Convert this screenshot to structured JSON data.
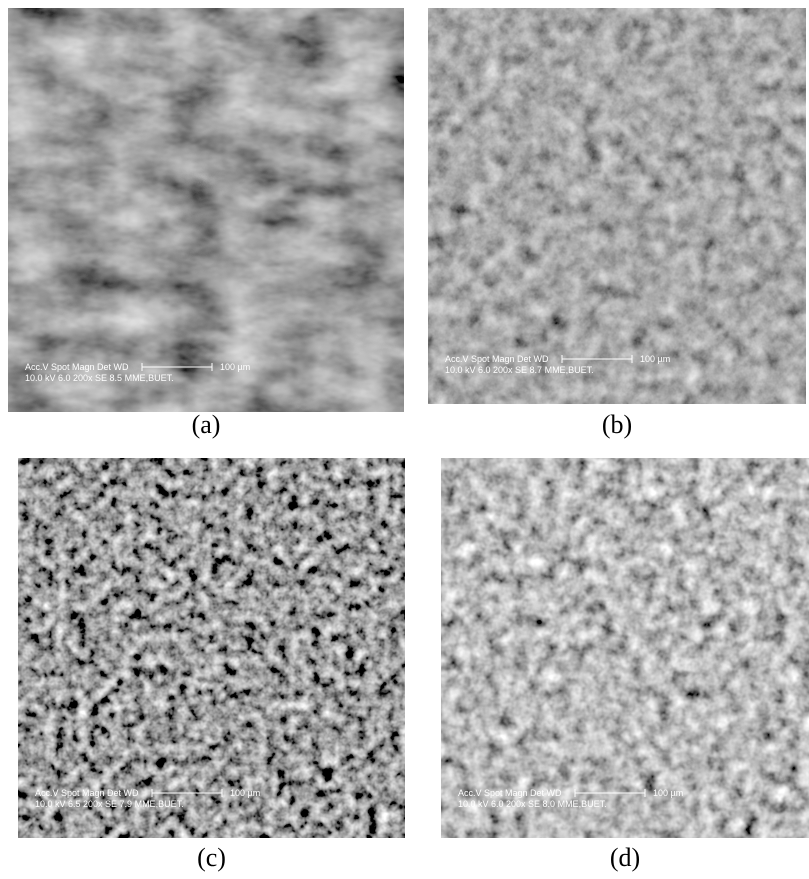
{
  "panels": [
    {
      "label": "(a)",
      "info_header": "Acc.V  Spot Magn    Det  WD",
      "scale": "100 µm",
      "info_values": "10.0 kV 6.0  200x    SE  8.5  MME,BUET."
    },
    {
      "label": "(b)",
      "info_header": "Acc.V  Spot Magn    Det  WD",
      "scale": "100 µm",
      "info_values": "10.0 kV 6.0  200x    SE  8.7  MME,BUET."
    },
    {
      "label": "(c)",
      "info_header": "Acc.V  Spot Magn    Det  WD",
      "scale": "100 µm",
      "info_values": "10.0 kV 6.5  200x    SE  7.9  MME,BUET."
    },
    {
      "label": "(d)",
      "info_header": "Acc.V  Spot Magn    Det  WD",
      "scale": "100 µm",
      "info_values": "10.0 kV 6.0  200x    SE  8.0  MME,BUET."
    }
  ]
}
